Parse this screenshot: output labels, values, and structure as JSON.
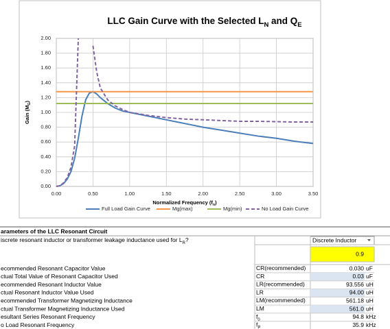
{
  "chart_data": {
    "type": "line",
    "title": [
      "LLC Gain Curve with the Selected L",
      "N",
      " and Q",
      "E"
    ],
    "x_label": [
      "Normalized Frequency (f",
      "n",
      ")"
    ],
    "y_label": [
      "Gain (M",
      "G",
      ")"
    ],
    "x": [
      0,
      0.05,
      0.1,
      0.15,
      0.2,
      0.25,
      0.3,
      0.35,
      0.4,
      0.45,
      0.5,
      0.55,
      0.6,
      0.7,
      0.8,
      0.9,
      1.0,
      1.25,
      1.5,
      1.75,
      2.0,
      2.25,
      2.5,
      2.75,
      3.0,
      3.25,
      3.5
    ],
    "series": [
      {
        "name": "Full Load Gain Curve",
        "color": "#4a7ebb",
        "style": "solid",
        "values": [
          0,
          0.01,
          0.04,
          0.1,
          0.2,
          0.38,
          0.65,
          0.95,
          1.17,
          1.26,
          1.28,
          1.25,
          1.2,
          1.12,
          1.06,
          1.02,
          1.0,
          0.95,
          0.9,
          0.85,
          0.8,
          0.76,
          0.72,
          0.68,
          0.65,
          0.61,
          0.58
        ]
      },
      {
        "name": "Mg(max)",
        "color": "#f79646",
        "style": "solid",
        "values": [
          1.28,
          1.28,
          1.28,
          1.28,
          1.28,
          1.28,
          1.28,
          1.28,
          1.28,
          1.28,
          1.28,
          1.28,
          1.28,
          1.28,
          1.28,
          1.28,
          1.28,
          1.28,
          1.28,
          1.28,
          1.28,
          1.28,
          1.28,
          1.28,
          1.28,
          1.28,
          1.28
        ]
      },
      {
        "name": "Mg(min)",
        "color": "#9bbb59",
        "style": "solid",
        "values": [
          1.12,
          1.12,
          1.12,
          1.12,
          1.12,
          1.12,
          1.12,
          1.12,
          1.12,
          1.12,
          1.12,
          1.12,
          1.12,
          1.12,
          1.12,
          1.12,
          1.12,
          1.12,
          1.12,
          1.12,
          1.12,
          1.12,
          1.12,
          1.12,
          1.12,
          1.12,
          1.12
        ]
      },
      {
        "name": "No Load Gain Curve",
        "color": "#8064a2",
        "style": "dashed",
        "values": [
          0,
          0.01,
          0.05,
          0.12,
          0.26,
          0.55,
          2.0,
          null,
          null,
          null,
          1.9,
          1.55,
          1.33,
          1.17,
          1.09,
          1.04,
          1.0,
          0.96,
          0.93,
          0.91,
          0.9,
          0.89,
          0.88,
          0.88,
          0.875,
          0.87,
          0.87
        ]
      }
    ],
    "xlim": [
      0,
      3.5
    ],
    "ylim": [
      0,
      2
    ],
    "xticks": [
      {
        "value": 0,
        "label": "0.00"
      },
      {
        "value": 0.5,
        "label": "0.50"
      },
      {
        "value": 1,
        "label": "1.00"
      },
      {
        "value": 1.5,
        "label": "1.50"
      },
      {
        "value": 2,
        "label": "2.00"
      },
      {
        "value": 2.5,
        "label": "2.50"
      },
      {
        "value": 3,
        "label": "3.00"
      },
      {
        "value": 3.5,
        "label": "3.50"
      }
    ],
    "yticks": [
      {
        "value": 0,
        "label": "0.00"
      },
      {
        "value": 0.2,
        "label": "0.20"
      },
      {
        "value": 0.4,
        "label": "0.40"
      },
      {
        "value": 0.6,
        "label": "0.60"
      },
      {
        "value": 0.8,
        "label": "0.80"
      },
      {
        "value": 1,
        "label": "1.00"
      },
      {
        "value": 1.2,
        "label": "1.20"
      },
      {
        "value": 1.4,
        "label": "1.40"
      },
      {
        "value": 1.6,
        "label": "1.60"
      },
      {
        "value": 1.8,
        "label": "1.80"
      },
      {
        "value": 2,
        "label": "2.00"
      }
    ],
    "grid": true,
    "legend": "bottom"
  },
  "table": {
    "header": "arameters of the LLC Resonant Circuit",
    "question": [
      "iscrete resonant inductor or transformer leakage inductance used for L",
      "R",
      "?"
    ],
    "dropdown": "Discrete Inductor",
    "input": "0.9",
    "rows": [
      {
        "label": "ecommended Resonant Capacitor Value",
        "symbol": [
          "CR(recommended)"
        ],
        "value": "0.030",
        "unit": "uF",
        "input": false
      },
      {
        "label": "ctual Total Value of Resonant Capacitor Used",
        "symbol": [
          "CR"
        ],
        "value": "0.03",
        "unit": "uF",
        "input": true
      },
      {
        "label": "ecommended Resonant Inductor Value",
        "symbol": [
          "LR(recommended)"
        ],
        "value": "93.556",
        "unit": "uH",
        "input": false
      },
      {
        "label": "ctual Resonant Inductor Value Used",
        "symbol": [
          "LR"
        ],
        "value": "94.00",
        "unit": "uH",
        "input": true
      },
      {
        "label": "ecommended Transformer Magnetizing Inductance",
        "symbol": [
          "LM(recommended)"
        ],
        "value": "561.18",
        "unit": "uH",
        "input": false
      },
      {
        "label": "ctual Transformer Magnetizing Inductance Used",
        "symbol": [
          "LM"
        ],
        "value": "561.0",
        "unit": "uH",
        "input": true
      },
      {
        "label": "esultant Series Resonant Frequency",
        "symbol": [
          "f",
          "0"
        ],
        "value": "94.8",
        "unit": "kHz",
        "input": false
      },
      {
        "label": "o Load Resonant Frequency",
        "symbol": [
          "f",
          "P"
        ],
        "value": "35.9",
        "unit": "kHz",
        "input": false
      }
    ]
  }
}
